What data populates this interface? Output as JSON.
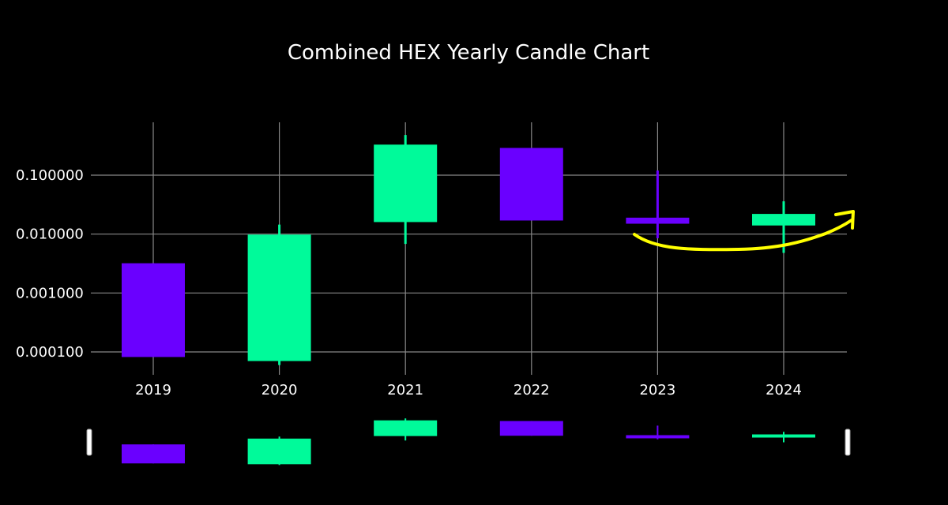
{
  "chart_data": {
    "type": "candlestick",
    "title": "Combined HEX Yearly Candle Chart",
    "xlabel": "",
    "ylabel": "",
    "y_scale": "log",
    "ylim": [
      5e-05,
      0.3
    ],
    "y_ticks": [
      {
        "value": 0.1,
        "label": "0.100000"
      },
      {
        "value": 0.01,
        "label": "0.010000"
      },
      {
        "value": 0.001,
        "label": "0.001000"
      },
      {
        "value": 0.0001,
        "label": "0.000100"
      }
    ],
    "categories": [
      "2019",
      "2020",
      "2021",
      "2022",
      "2023",
      "2024"
    ],
    "candles": [
      {
        "x": "2019",
        "open": 0.0032,
        "high": 0.0032,
        "low": 8.2e-05,
        "close": 8.2e-05
      },
      {
        "x": "2020",
        "open": 7e-05,
        "high": 0.0145,
        "low": 6e-05,
        "close": 0.0098
      },
      {
        "x": "2021",
        "open": 0.016,
        "high": 0.48,
        "low": 0.0068,
        "close": 0.33
      },
      {
        "x": "2022",
        "open": 0.29,
        "high": 0.29,
        "low": 0.017,
        "close": 0.017
      },
      {
        "x": "2023",
        "open": 0.019,
        "high": 0.12,
        "low": 0.0085,
        "close": 0.015
      },
      {
        "x": "2024",
        "open": 0.014,
        "high": 0.036,
        "low": 0.0048,
        "close": 0.022
      }
    ],
    "grid": true,
    "colors": {
      "increasing": "#00FA9A",
      "decreasing": "#6A00FF",
      "background": "#000000",
      "grid": "#888888",
      "text": "#ffffff",
      "annotation": "#FFFF00"
    },
    "annotations": [
      {
        "type": "freehand-arrow",
        "color": "#FFFF00",
        "from": "2023",
        "to": "2024"
      }
    ],
    "range_slider": true
  }
}
